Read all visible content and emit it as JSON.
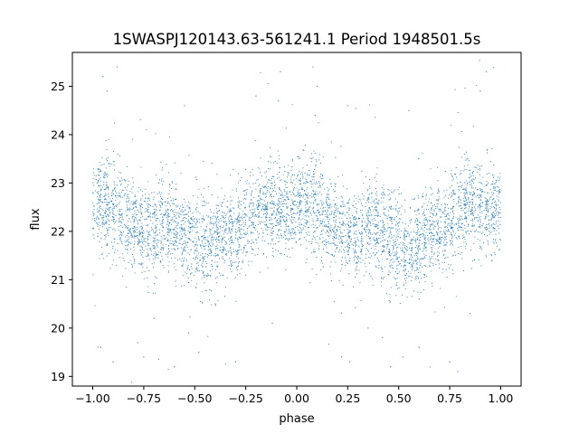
{
  "chart_data": {
    "type": "scatter",
    "title": "1SWASPJ120143.63-561241.1 Period 1948501.5s",
    "xlabel": "phase",
    "ylabel": "flux",
    "xlim": [
      -1.1,
      1.1
    ],
    "ylim": [
      18.8,
      25.7
    ],
    "x_ticks": [
      -1.0,
      -0.75,
      -0.5,
      -0.25,
      0.0,
      0.25,
      0.5,
      0.75,
      1.0
    ],
    "x_tick_labels": [
      "−1.00",
      "−0.75",
      "−0.50",
      "−0.25",
      "0.00",
      "0.25",
      "0.50",
      "0.75",
      "1.00"
    ],
    "y_ticks": [
      19,
      20,
      21,
      22,
      23,
      24,
      25
    ],
    "y_tick_labels": [
      "19",
      "20",
      "21",
      "22",
      "23",
      "24",
      "25"
    ],
    "grid": false,
    "legend": "none",
    "marker_color": "#1f77b4",
    "profile": {
      "phase": [
        -1.0,
        -0.95,
        -0.9,
        -0.85,
        -0.8,
        -0.75,
        -0.7,
        -0.65,
        -0.6,
        -0.55,
        -0.5,
        -0.45,
        -0.4,
        -0.35,
        -0.3,
        -0.25,
        -0.2,
        -0.15,
        -0.1,
        -0.05,
        0.0,
        0.05,
        0.1,
        0.15,
        0.2,
        0.25,
        0.3,
        0.35,
        0.4,
        0.45,
        0.5,
        0.55,
        0.6,
        0.65,
        0.7,
        0.75,
        0.8,
        0.85,
        0.9,
        0.95,
        1.0
      ],
      "flux_center": [
        22.5,
        22.6,
        22.5,
        22.3,
        22.1,
        22.0,
        22.0,
        22.2,
        22.1,
        21.9,
        21.8,
        21.7,
        21.8,
        22.0,
        22.0,
        22.2,
        22.4,
        22.6,
        22.5,
        22.4,
        22.5,
        22.6,
        22.5,
        22.3,
        22.1,
        22.0,
        22.0,
        22.2,
        22.1,
        21.9,
        21.8,
        21.7,
        21.8,
        22.0,
        22.0,
        22.2,
        22.4,
        22.6,
        22.5,
        22.4,
        22.5
      ],
      "flux_spread": [
        0.45,
        0.5,
        0.5,
        0.45,
        0.45,
        0.45,
        0.45,
        0.5,
        0.5,
        0.5,
        0.5,
        0.5,
        0.45,
        0.45,
        0.45,
        0.45,
        0.45,
        0.5,
        0.5,
        0.45,
        0.45,
        0.5,
        0.5,
        0.45,
        0.45,
        0.45,
        0.45,
        0.5,
        0.5,
        0.5,
        0.5,
        0.5,
        0.45,
        0.45,
        0.45,
        0.45,
        0.45,
        0.5,
        0.5,
        0.45,
        0.45
      ]
    },
    "outliers": [
      {
        "x": -0.95,
        "y": 25.2
      },
      {
        "x": -0.93,
        "y": 24.9
      },
      {
        "x": -0.88,
        "y": 25.4
      },
      {
        "x": -0.96,
        "y": 19.6
      },
      {
        "x": -0.9,
        "y": 19.3
      },
      {
        "x": -0.78,
        "y": 19.7
      },
      {
        "x": -0.75,
        "y": 19.4
      },
      {
        "x": -0.6,
        "y": 19.2
      },
      {
        "x": -0.53,
        "y": 19.9
      },
      {
        "x": -0.48,
        "y": 19.5
      },
      {
        "x": -0.3,
        "y": 19.3
      },
      {
        "x": -0.12,
        "y": 20.1
      },
      {
        "x": -0.09,
        "y": 24.7
      },
      {
        "x": -0.08,
        "y": 25.3
      },
      {
        "x": 0.08,
        "y": 25.4
      },
      {
        "x": 0.1,
        "y": 25.0
      },
      {
        "x": 0.09,
        "y": 24.4
      },
      {
        "x": 0.22,
        "y": 19.4
      },
      {
        "x": 0.26,
        "y": 19.3
      },
      {
        "x": 0.35,
        "y": 20.0
      },
      {
        "x": 0.42,
        "y": 19.8
      },
      {
        "x": 0.46,
        "y": 19.2
      },
      {
        "x": 0.52,
        "y": 19.4
      },
      {
        "x": 0.6,
        "y": 19.6
      },
      {
        "x": 0.75,
        "y": 19.3
      },
      {
        "x": 0.79,
        "y": 19.1
      },
      {
        "x": 0.9,
        "y": 24.9
      },
      {
        "x": 0.93,
        "y": 25.3
      },
      {
        "x": -0.2,
        "y": 24.8
      },
      {
        "x": 0.25,
        "y": 24.6
      },
      {
        "x": 0.55,
        "y": 24.5
      },
      {
        "x": -0.55,
        "y": 24.6
      },
      {
        "x": 0.6,
        "y": 20.6
      },
      {
        "x": -0.4,
        "y": 20.5
      },
      {
        "x": 0.85,
        "y": 20.3
      },
      {
        "x": -0.7,
        "y": 20.2
      }
    ]
  }
}
